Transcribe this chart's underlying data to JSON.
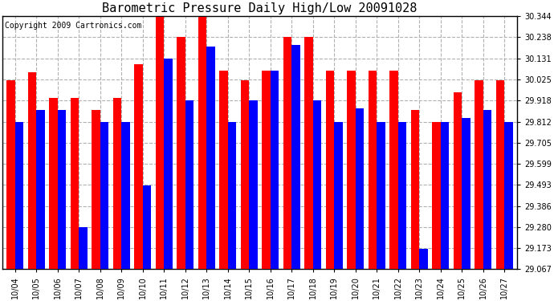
{
  "title": "Barometric Pressure Daily High/Low 20091028",
  "copyright": "Copyright 2009 Cartronics.com",
  "dates": [
    "10/04",
    "10/05",
    "10/06",
    "10/07",
    "10/08",
    "10/09",
    "10/10",
    "10/11",
    "10/12",
    "10/13",
    "10/14",
    "10/15",
    "10/16",
    "10/17",
    "10/18",
    "10/19",
    "10/20",
    "10/21",
    "10/22",
    "10/23",
    "10/24",
    "10/25",
    "10/26",
    "10/27"
  ],
  "high": [
    30.02,
    30.06,
    29.93,
    29.93,
    29.87,
    29.93,
    30.1,
    30.34,
    30.24,
    30.34,
    30.07,
    30.02,
    30.07,
    30.24,
    30.24,
    30.07,
    30.07,
    30.07,
    30.07,
    29.87,
    29.81,
    29.96,
    30.02,
    30.02
  ],
  "low": [
    29.81,
    29.87,
    29.87,
    29.28,
    29.81,
    29.81,
    29.49,
    30.13,
    29.92,
    30.19,
    29.81,
    29.92,
    30.07,
    30.2,
    29.92,
    29.81,
    29.88,
    29.81,
    29.81,
    29.17,
    29.81,
    29.83,
    29.87,
    29.81
  ],
  "ymin": 29.067,
  "ymax": 30.344,
  "yticks": [
    29.067,
    29.173,
    29.28,
    29.386,
    29.493,
    29.599,
    29.705,
    29.812,
    29.918,
    30.025,
    30.131,
    30.238,
    30.344
  ],
  "high_color": "#ff0000",
  "low_color": "#0000ff",
  "bg_color": "#ffffff",
  "grid_color": "#b0b0b0",
  "bar_width": 0.4,
  "title_fontsize": 11,
  "tick_fontsize": 7,
  "copyright_fontsize": 7
}
